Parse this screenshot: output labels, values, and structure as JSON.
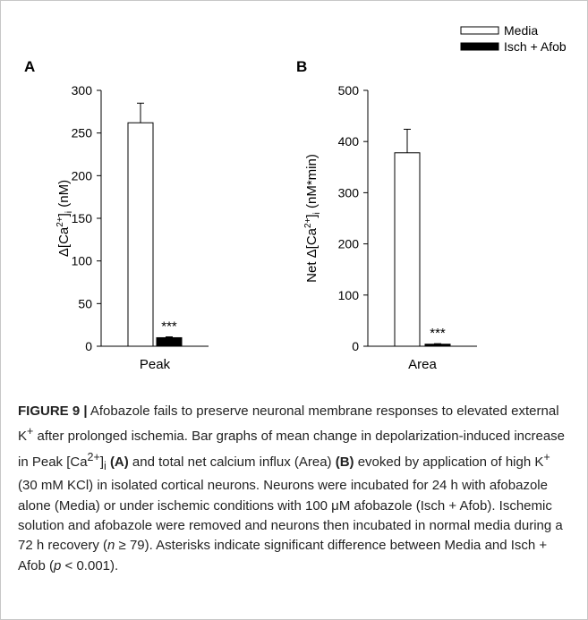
{
  "legend": [
    {
      "label": "Media",
      "fill": "#ffffff"
    },
    {
      "label": "Isch + Afob",
      "fill": "#000000"
    }
  ],
  "chart_data": [
    {
      "type": "bar",
      "panel": "A",
      "categories": [
        "Media",
        "Isch + Afob"
      ],
      "values": [
        262,
        10
      ],
      "errors": [
        23,
        1
      ],
      "bar_colors": [
        "#ffffff",
        "#000000"
      ],
      "xlabel": "Peak",
      "ylabel": "Δ[Ca2+]i (nM)",
      "ylabel_parts": {
        "pre": "Δ[Ca",
        "sup": "2+",
        "mid": "]",
        "sub": "i",
        "post": " (nM)"
      },
      "ylim": [
        0,
        300
      ],
      "yticks": [
        0,
        50,
        100,
        150,
        200,
        250,
        300
      ],
      "annotation": "***",
      "legend_placement": "top-right",
      "grid": false
    },
    {
      "type": "bar",
      "panel": "B",
      "categories": [
        "Media",
        "Isch + Afob"
      ],
      "values": [
        378,
        4
      ],
      "errors": [
        46,
        1
      ],
      "bar_colors": [
        "#ffffff",
        "#000000"
      ],
      "xlabel": "Area",
      "ylabel": "Net Δ[Ca2+]i (nM*min)",
      "ylabel_parts": {
        "pre": "Net Δ[Ca",
        "sup": "2+",
        "mid": "]",
        "sub": "i",
        "post": " (nM*min)"
      },
      "ylim": [
        0,
        500
      ],
      "yticks": [
        0,
        100,
        200,
        300,
        400,
        500
      ],
      "annotation": "***",
      "grid": false
    }
  ],
  "caption": {
    "lead": "FIGURE 9 |",
    "t1": " Afobazole fails to preserve neuronal membrane responses to elevated external K",
    "t1_sup": "+",
    "t2": " after prolonged ischemia. Bar graphs of mean change in depolarization-induced increase in Peak [Ca",
    "t2_sup": "2+",
    "t2_close": "]",
    "t2_sub": "i",
    "panel_a": "(A)",
    "t3": " and total net calcium influx (Area) ",
    "panel_b": "(B)",
    "t4": " evoked by application of high K",
    "t4_sup": "+",
    "t5": " (30 mM KCl) in isolated cortical neurons. Neurons were incubated for 24 h with afobazole alone (Media) or under ischemic conditions with 100 μM afobazole (Isch + Afob). Ischemic solution and afobazole were removed and neurons then incubated in normal media during a 72 h recovery (",
    "n": "n",
    "t6": " ≥ 79). Asterisks indicate significant difference between Media and Isch + Afob (",
    "p": "p",
    "t7": " < 0.001)."
  }
}
